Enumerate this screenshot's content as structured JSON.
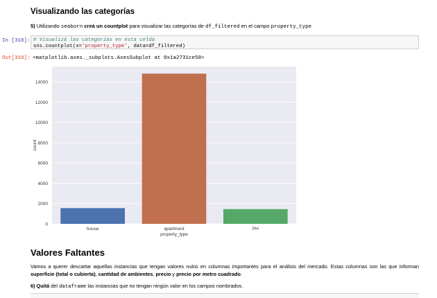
{
  "section1": {
    "title": "Visualizando las categorías",
    "instruction": {
      "num": "5)",
      "t1": " Utilizando ",
      "code1": "seaborn",
      "b1": " creá un countplot",
      "t2": " para visualizar las categorías de ",
      "code2": "df_filtered",
      "t3": " en el campo ",
      "code3": "property_type"
    }
  },
  "cell_in": {
    "prompt": "In [310]:",
    "comment": "# Visualizá las categorías en esta celda",
    "code_a": "sns.countplot(x=",
    "code_str": "'property_type'",
    "code_b": ", data=df_filtered)"
  },
  "cell_out": {
    "prompt": "Out[310]:",
    "text": "<matplotlib.axes._subplots.AxesSubplot at 0x1a2731ce50>"
  },
  "chart_data": {
    "type": "bar",
    "categories": [
      "house",
      "apartment",
      "PH"
    ],
    "values": [
      1550,
      14800,
      1450
    ],
    "colors": [
      "#4c72b0",
      "#c0704f",
      "#55a868"
    ],
    "xlabel": "property_type",
    "ylabel": "count",
    "ylim": [
      0,
      15500
    ],
    "yticks": [
      0,
      2000,
      4000,
      6000,
      8000,
      10000,
      12000,
      14000
    ],
    "grid": true,
    "background": "#eaeaf2"
  },
  "section2": {
    "title": "Valores Faltantes",
    "para_t1": "Vamos a querer descartar aquellas instancias que tengan valores nulos en columnas importantes para el análisis del mercado. Estas columnas son las que informan ",
    "para_b1": "superficie (total o cubierta)",
    "para_t2": ", ",
    "para_b2": "cantidad de ambientes",
    "para_t3": ", ",
    "para_b3": "precio",
    "para_t4": " y ",
    "para_b4": "precio por metro cuadrado",
    "para_t5": ".",
    "q_num": "6)",
    "q_b": " Quitá",
    "q_t1": " del ",
    "q_code": "dataframe",
    "q_t2": " las instancias que no tengan ningún valor en los campos nombrados."
  }
}
